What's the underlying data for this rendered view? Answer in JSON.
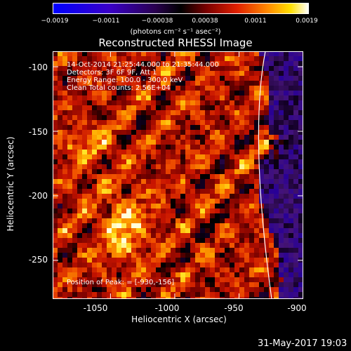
{
  "colorbar": {
    "tick_labels": [
      "−0.0019",
      "−0.0011",
      "−0.00038",
      "0.00038",
      "0.0011",
      "0.0019"
    ],
    "units": "(photons cm⁻² s⁻¹ asec⁻²)"
  },
  "title": "Reconstructed RHESSI Image",
  "info_lines": [
    "14-Oct-2014 21:25:44.000 to 21:35:44.000",
    "Detectors: 3F 6F 9F, Att 1",
    "Energy Range: 100.0 - 300.0 keV",
    "Clean    Total counts: 2.56E+04"
  ],
  "peak_text": "Position of Peak: = [-930,-156]",
  "x_axis": {
    "label": "Heliocentric X (arcsec)",
    "ticks": [
      "-1050",
      "-1000",
      "-950",
      "-900"
    ],
    "tick_values": [
      -1050,
      -1000,
      -950,
      -900
    ],
    "range": [
      -1095,
      -900
    ]
  },
  "y_axis": {
    "label": "Heliocentric Y (arcsec)",
    "ticks": [
      "-100",
      "-150",
      "-200",
      "-250"
    ],
    "tick_values": [
      -100,
      -150,
      -200,
      -250
    ],
    "range": [
      -280,
      -88
    ]
  },
  "footer": "31-May-2017 19:03"
}
